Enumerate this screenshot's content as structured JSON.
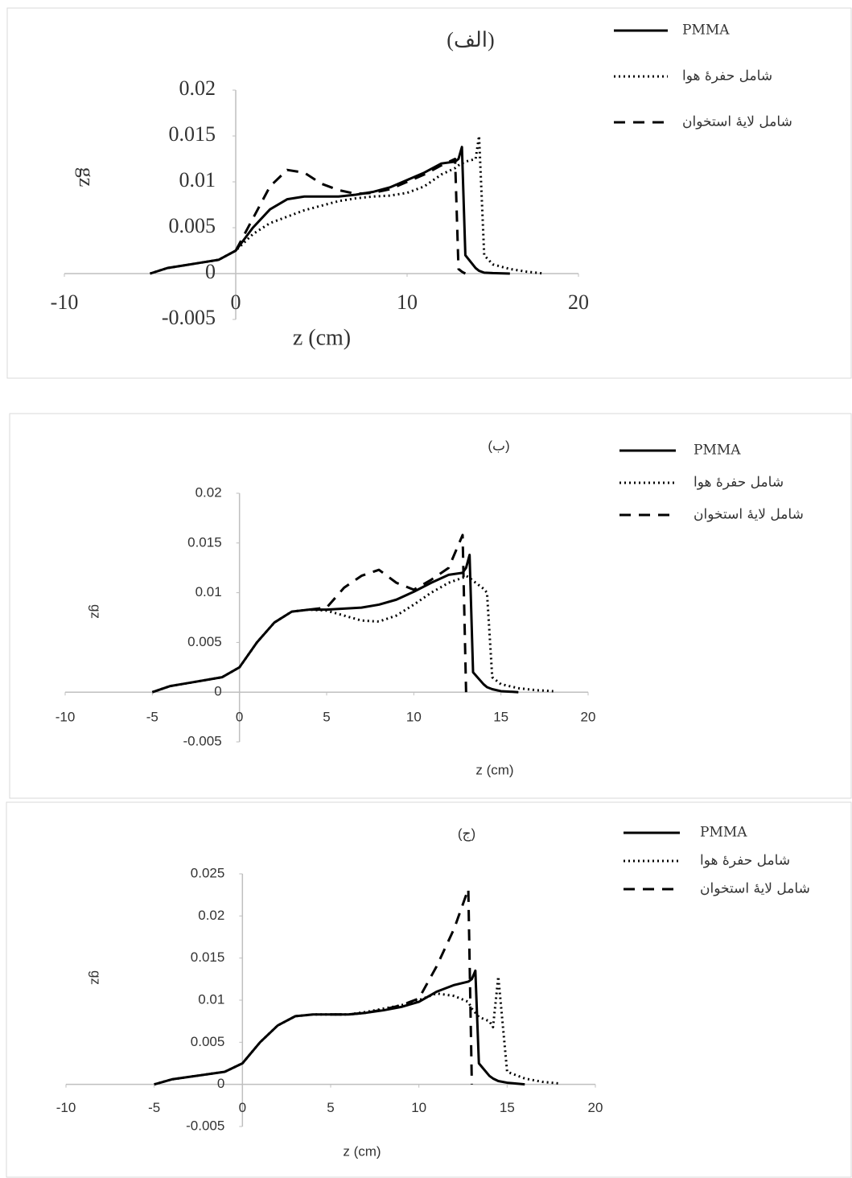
{
  "chart_data": [
    {
      "type": "line",
      "annotation": "(الف)",
      "ylabel": "gz",
      "xlabel": "z (cm)",
      "x": [
        -5,
        -4,
        -3,
        -2,
        -1,
        0,
        1,
        2,
        3,
        4,
        5,
        6,
        7,
        8,
        9,
        10,
        11,
        12,
        12.8,
        13,
        13.2,
        13.4,
        14,
        14.2,
        14.5,
        15,
        16,
        17,
        18
      ],
      "xlim": [
        -10,
        20
      ],
      "xticks": [
        -10,
        0,
        10,
        20
      ],
      "ylim": [
        -0.005,
        0.02
      ],
      "yticks": [
        -0.005,
        0,
        0.005,
        0.01,
        0.015,
        0.02
      ],
      "legend": "right",
      "series": [
        {
          "name": "PMMA",
          "color": "#000000",
          "linestyle": "solid",
          "values": [
            0,
            0.0006,
            0.0009,
            0.0012,
            0.0015,
            0.0025,
            0.005,
            0.007,
            0.0081,
            0.0084,
            0.0084,
            0.0084,
            0.0086,
            0.0089,
            0.0094,
            0.0102,
            0.011,
            0.012,
            0.0122,
            0.0125,
            0.0138,
            0.002,
            0.0006,
            0.0003,
            0.0001,
            5e-05,
            0,
            null,
            null
          ]
        },
        {
          "name": "شامل حفرهٔ هوا",
          "color": "#000000",
          "linestyle": "dotted",
          "values": [
            0,
            0.0006,
            0.0009,
            0.0012,
            0.0015,
            0.0025,
            0.0043,
            0.0055,
            0.0062,
            0.0069,
            0.0074,
            0.0079,
            0.0082,
            0.0084,
            0.0085,
            0.0088,
            0.0095,
            0.0108,
            0.0115,
            0.0118,
            0.012,
            0.0122,
            0.0125,
            0.015,
            0.002,
            0.001,
            0.0005,
            0.0002,
            0
          ]
        },
        {
          "name": "شامل لایهٔ استخوان",
          "color": "#000000",
          "linestyle": "dashed",
          "values": [
            null,
            null,
            null,
            null,
            null,
            0.0025,
            0.006,
            0.0095,
            0.0113,
            0.011,
            0.0098,
            0.0091,
            0.0087,
            0.0088,
            0.0092,
            0.01,
            0.0108,
            0.0118,
            0.0125,
            0.0005,
            0.0002,
            0,
            null,
            null,
            null,
            null,
            null,
            null,
            null
          ]
        }
      ]
    },
    {
      "type": "line",
      "annotation": "(ب)",
      "ylabel": "gz",
      "xlabel": "z (cm)",
      "x": [
        -5,
        -4,
        -3,
        -2,
        -1,
        0,
        1,
        2,
        3,
        4,
        5,
        6,
        7,
        8,
        9,
        10,
        11,
        12,
        12.8,
        13,
        13.2,
        13.4,
        14,
        14.2,
        14.5,
        15,
        16,
        17,
        18
      ],
      "xlim": [
        -10,
        20
      ],
      "xticks": [
        -10,
        -5,
        0,
        5,
        10,
        15,
        20
      ],
      "ylim": [
        -0.005,
        0.02
      ],
      "yticks": [
        -0.005,
        0,
        0.005,
        0.01,
        0.015,
        0.02
      ],
      "legend": "right",
      "series": [
        {
          "name": "PMMA",
          "color": "#000000",
          "linestyle": "solid",
          "values": [
            0,
            0.0006,
            0.0009,
            0.0012,
            0.0015,
            0.0025,
            0.005,
            0.007,
            0.0081,
            0.0083,
            0.0083,
            0.0084,
            0.0085,
            0.0088,
            0.0093,
            0.0101,
            0.011,
            0.0118,
            0.012,
            0.0125,
            0.0138,
            0.002,
            0.0008,
            0.0005,
            0.0003,
            0.0001,
            0,
            null,
            null
          ]
        },
        {
          "name": "شامل حفرهٔ هوا",
          "color": "#000000",
          "linestyle": "dotted",
          "values": [
            0,
            0.0006,
            0.0009,
            0.0012,
            0.0015,
            0.0025,
            0.005,
            0.007,
            0.0081,
            0.0083,
            0.0082,
            0.0077,
            0.0072,
            0.0071,
            0.0077,
            0.0088,
            0.01,
            0.011,
            0.0115,
            0.0117,
            0.0115,
            0.0112,
            0.0104,
            0.01,
            0.0015,
            0.0008,
            0.0004,
            0.0002,
            0.0001
          ]
        },
        {
          "name": "شامل لایهٔ استخوان",
          "color": "#000000",
          "linestyle": "dashed",
          "values": [
            null,
            null,
            null,
            null,
            null,
            null,
            null,
            null,
            null,
            0.0083,
            0.0085,
            0.0105,
            0.0117,
            0.0123,
            0.011,
            0.0103,
            0.0113,
            0.0125,
            0.0158,
            0,
            null,
            null,
            null,
            null,
            null,
            null,
            null,
            null,
            null
          ]
        }
      ]
    },
    {
      "type": "line",
      "annotation": "(ج)",
      "ylabel": "gz",
      "xlabel": "z (cm)",
      "x": [
        -5,
        -4,
        -3,
        -2,
        -1,
        0,
        1,
        2,
        3,
        4,
        5,
        6,
        7,
        8,
        9,
        10,
        11,
        12,
        12.8,
        13,
        13.2,
        13.4,
        14,
        14.2,
        14.5,
        15,
        16,
        17,
        18
      ],
      "xlim": [
        -10,
        20
      ],
      "xticks": [
        -10,
        -5,
        0,
        5,
        10,
        15,
        20
      ],
      "ylim": [
        -0.005,
        0.025
      ],
      "yticks": [
        -0.005,
        0,
        0.005,
        0.01,
        0.015,
        0.02,
        0.025
      ],
      "legend": "right",
      "series": [
        {
          "name": "PMMA",
          "color": "#000000",
          "linestyle": "solid",
          "values": [
            0,
            0.0006,
            0.0009,
            0.0012,
            0.0015,
            0.0025,
            0.005,
            0.007,
            0.0081,
            0.0083,
            0.0083,
            0.0083,
            0.0085,
            0.0088,
            0.0092,
            0.0098,
            0.011,
            0.0118,
            0.0122,
            0.0125,
            0.0135,
            0.0025,
            0.001,
            0.0007,
            0.0004,
            0.0002,
            0,
            null,
            null
          ]
        },
        {
          "name": "شامل حفرهٔ هوا",
          "color": "#000000",
          "linestyle": "dotted",
          "values": [
            0,
            0.0006,
            0.0009,
            0.0012,
            0.0015,
            0.0025,
            0.005,
            0.007,
            0.0081,
            0.0083,
            0.0083,
            0.0083,
            0.0086,
            0.009,
            0.0094,
            0.01,
            0.0108,
            0.0105,
            0.0098,
            0.009,
            0.0085,
            0.008,
            0.0075,
            0.0068,
            0.0128,
            0.0015,
            0.0007,
            0.0003,
            0.0001
          ]
        },
        {
          "name": "شامل لایهٔ استخوان",
          "color": "#000000",
          "linestyle": "dashed",
          "values": [
            null,
            null,
            null,
            null,
            null,
            null,
            null,
            null,
            null,
            null,
            0.0083,
            0.0083,
            0.0085,
            0.0089,
            0.0094,
            0.0102,
            0.014,
            0.0185,
            0.0232,
            0,
            null,
            null,
            null,
            null,
            null,
            null,
            null,
            null,
            null
          ]
        }
      ]
    }
  ]
}
